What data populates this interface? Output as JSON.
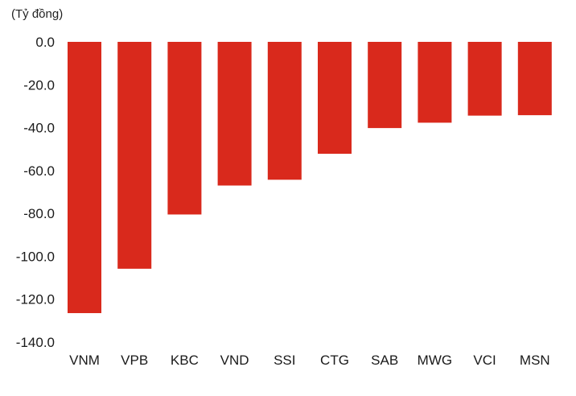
{
  "chart_data": {
    "type": "bar",
    "unit_label": "(Tỷ đồng)",
    "categories": [
      "VNM",
      "VPB",
      "KBC",
      "VND",
      "SSI",
      "CTG",
      "SAB",
      "MWG",
      "VCI",
      "MSN"
    ],
    "values": [
      -126.5,
      -105.8,
      -80.5,
      -67.0,
      -64.3,
      -52.2,
      -40.2,
      -37.7,
      -34.4,
      -34.2
    ],
    "ylim": [
      -140,
      0
    ],
    "yticks": [
      0,
      -20,
      -40,
      -60,
      -80,
      -100,
      -120,
      -140
    ],
    "ytick_labels": [
      "0.0",
      "-20.0",
      "-40.0",
      "-60.0",
      "-80.0",
      "-100.0",
      "-120.0",
      "-140.0"
    ],
    "grid": false,
    "bar_color": "#d9291c"
  }
}
